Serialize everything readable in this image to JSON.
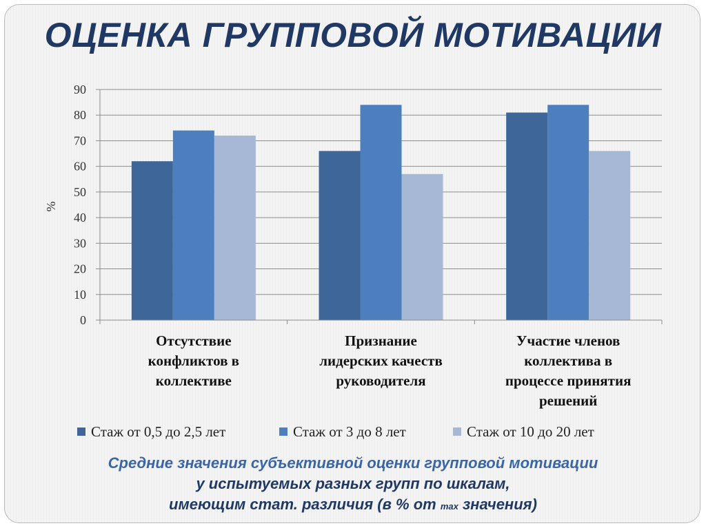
{
  "title": "ОЦЕНКА ГРУППОВОЙ МОТИВАЦИИ",
  "caption": {
    "line1": "Средние значения субъективной оценки групповой мотивации",
    "line2": "у испытуемых разных групп по шкалам,",
    "line3_a": "имеющим стат. различия (в % от ",
    "line3_max": "max",
    "line3_b": " значения)"
  },
  "colors": {
    "title": "#1f3864",
    "caption": "#3a66a8",
    "series": [
      "#3e6699",
      "#4d7fbf",
      "#a6b8d6"
    ]
  },
  "chart_data": {
    "type": "bar",
    "ylabel": "%",
    "xlabel": "",
    "ylim": [
      0,
      90
    ],
    "yticks": [
      0,
      10,
      20,
      30,
      40,
      50,
      60,
      70,
      80,
      90
    ],
    "grid": true,
    "legend_position": "bottom",
    "categories": [
      [
        "Отсутствие",
        "конфликтов в",
        "коллективе"
      ],
      [
        "Признание",
        "лидерских качеств",
        "руководителя"
      ],
      [
        "Участие членов",
        "коллектива в",
        "процессе принятия",
        "решений"
      ]
    ],
    "series": [
      {
        "name": "Стаж от 0,5 до 2,5 лет",
        "values": [
          62,
          66,
          81
        ]
      },
      {
        "name": "Стаж от 3 до 8 лет",
        "values": [
          74,
          84,
          84
        ]
      },
      {
        "name": "Стаж от 10 до 20 лет",
        "values": [
          72,
          57,
          66
        ]
      }
    ]
  }
}
